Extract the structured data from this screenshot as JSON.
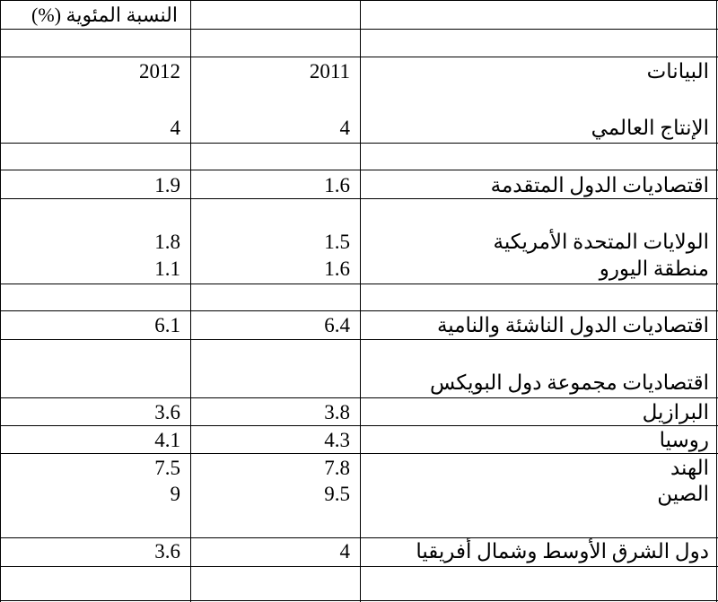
{
  "table": {
    "unit_label": "النسبة المئوية (%)",
    "header": {
      "label": "البيانات",
      "col_2011": "2011",
      "col_2012": "2012"
    },
    "rows": [
      {
        "label": "الإنتاج العالمي",
        "v2011": "4",
        "v2012": "4"
      },
      {
        "label": "اقتصاديات الدول المتقدمة",
        "v2011": "1.6",
        "v2012": "1.9"
      },
      {
        "label": "الولايات المتحدة الأمريكية",
        "v2011": "1.5",
        "v2012": "1.8"
      },
      {
        "label": "منطقة اليورو",
        "v2011": "1.6",
        "v2012": "1.1"
      },
      {
        "label": "اقتصاديات الدول الناشئة والنامية",
        "v2011": "6.4",
        "v2012": "6.1"
      },
      {
        "label": "اقتصاديات مجموعة دول البويكس",
        "v2011": "",
        "v2012": ""
      },
      {
        "label": "البرازيل",
        "v2011": "3.8",
        "v2012": "3.6"
      },
      {
        "label": "روسيا",
        "v2011": "4.3",
        "v2012": "4.1"
      },
      {
        "label": "الهند",
        "v2011": "7.8",
        "v2012": "7.5"
      },
      {
        "label": "الصين",
        "v2011": "9.5",
        "v2012": "9"
      },
      {
        "label": "دول الشرق الأوسط وشمال أفريقيا",
        "v2011": "4",
        "v2012": "3.6"
      }
    ]
  }
}
